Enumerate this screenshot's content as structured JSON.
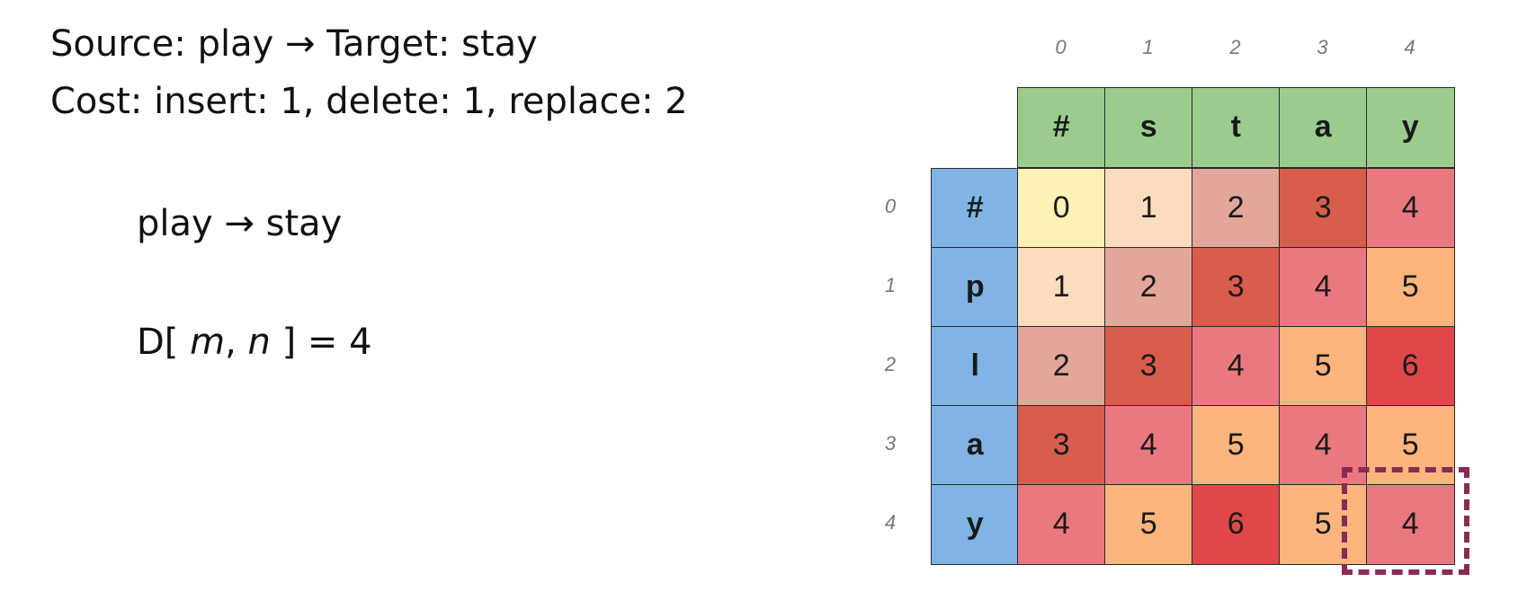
{
  "header": {
    "line1": "Source: play → Target: stay",
    "line2": "Cost: insert: 1,  delete: 1, replace: 2"
  },
  "body": {
    "transform": "play → stay",
    "result_prefix": "D[ ",
    "result_m": "m",
    "result_comma": ", ",
    "result_n": "n",
    "result_suffix": " ] = 4"
  },
  "table": {
    "col_indices": [
      "0",
      "1",
      "2",
      "3",
      "4"
    ],
    "row_indices": [
      "0",
      "1",
      "2",
      "3",
      "4"
    ],
    "target_chars": [
      "#",
      "s",
      "t",
      "a",
      "y"
    ],
    "source_chars": [
      "#",
      "p",
      "l",
      "a",
      "y"
    ],
    "values": [
      [
        0,
        1,
        2,
        3,
        4
      ],
      [
        1,
        2,
        3,
        4,
        5
      ],
      [
        2,
        3,
        4,
        5,
        6
      ],
      [
        3,
        4,
        5,
        4,
        5
      ],
      [
        4,
        5,
        6,
        5,
        4
      ]
    ],
    "value_colors": {
      "0": "#fdf1b6",
      "1": "#fcdcbc",
      "2": "#e3a69a",
      "3": "#d95d4d",
      "4": "#eb7880",
      "5": "#fbb57d",
      "6": "#e0474a"
    },
    "header_color": "#9bcc8e",
    "row_header_color": "#7fb4e4",
    "highlight_color": "#8a2b55"
  }
}
